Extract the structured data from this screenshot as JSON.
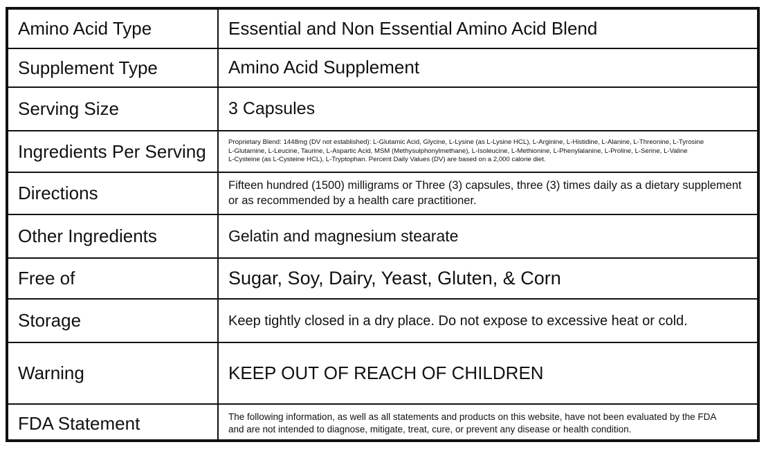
{
  "table": {
    "rows": [
      {
        "label": "Amino Acid Type",
        "value": [
          "Essential and Non Essential Amino Acid Blend"
        ]
      },
      {
        "label": "Supplement Type",
        "value": [
          "Amino Acid Supplement"
        ]
      },
      {
        "label": "Serving Size",
        "value": [
          "3 Capsules"
        ]
      },
      {
        "label": "Ingredients Per Serving",
        "value": [
          "Proprietary Blend: 1448mg (DV not established): L-Glutamic Acid, Glycine, L-Lysine (as L-Lysine HCL), L-Arginine, L-Histidine, L-Alanine, L-Threonine, L-Tyrosine",
          "L-Glutamine, L-Leucine, Taurine, L-Aspartic Acid, MSM (Methysulphonylmethane), L-Isoleucine, L-Methionine, L-Phenylalanine, L-Proline, L-Serine, L-Valine",
          "L-Cysteine (as L-Cysteine HCL), L-Tryptophan. Percent Daily Values (DV) are based on a 2,000 calorie diet."
        ]
      },
      {
        "label": "Directions",
        "value": [
          "Fifteen hundred (1500) milligrams or Three (3) capsules, three (3) times daily as a dietary supplement",
          "or as recommended by a health care practitioner."
        ]
      },
      {
        "label": "Other Ingredients",
        "value": [
          "Gelatin and magnesium stearate"
        ]
      },
      {
        "label": "Free of",
        "value": [
          "Sugar, Soy, Dairy, Yeast, Gluten, & Corn"
        ]
      },
      {
        "label": "Storage",
        "value": [
          "Keep tightly closed in a dry place. Do not expose to excessive heat or cold."
        ]
      },
      {
        "label": "Warning",
        "value": [
          "KEEP OUT OF REACH OF CHILDREN"
        ]
      },
      {
        "label": "FDA Statement",
        "value": [
          "The following information, as well as all statements and products on this website, have not been evaluated by the FDA",
          "and are not intended to diagnose, mitigate, treat, cure, or prevent any disease or health condition."
        ]
      }
    ]
  }
}
